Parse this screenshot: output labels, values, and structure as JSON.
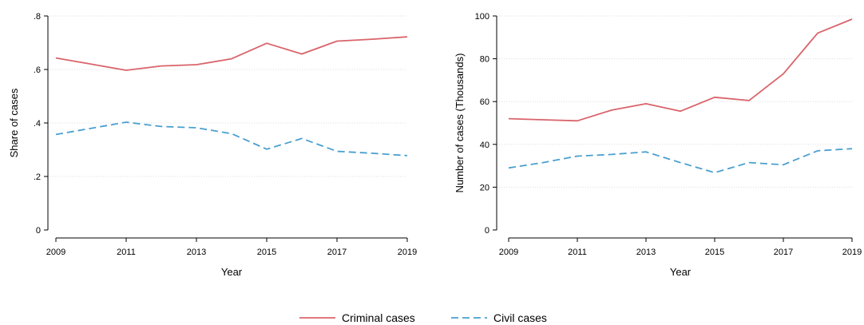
{
  "chart_data": [
    {
      "type": "line",
      "xlabel": "Year",
      "ylabel": "Share of cases",
      "xlim": [
        2009,
        2019
      ],
      "ylim": [
        0,
        0.8
      ],
      "x_ticks": [
        2009,
        2011,
        2013,
        2015,
        2017,
        2019
      ],
      "x_tick_labels": [
        "2009",
        "2011",
        "2013",
        "2015",
        "2017",
        "2019"
      ],
      "y_ticks": [
        0,
        0.2,
        0.4,
        0.6,
        0.8
      ],
      "y_tick_labels": [
        "0",
        ".2",
        ".4",
        ".6",
        ".8"
      ],
      "grid": true,
      "x": [
        2009,
        2010,
        2011,
        2012,
        2013,
        2014,
        2015,
        2016,
        2017,
        2018,
        2019
      ],
      "series": [
        {
          "name": "Criminal cases",
          "color": "#d9646b",
          "dash": "solid",
          "values": [
            0.643,
            0.62,
            0.597,
            0.613,
            0.618,
            0.64,
            0.698,
            0.658,
            0.706,
            0.713,
            0.722
          ]
        },
        {
          "name": "Civil cases",
          "color": "#4a9fd0",
          "dash": "dashed",
          "values": [
            0.357,
            0.38,
            0.403,
            0.387,
            0.382,
            0.36,
            0.302,
            0.342,
            0.294,
            0.287,
            0.278
          ]
        }
      ]
    },
    {
      "type": "line",
      "xlabel": "Year",
      "ylabel": "Number of cases (Thousands)",
      "xlim": [
        2009,
        2019
      ],
      "ylim": [
        0,
        100
      ],
      "x_ticks": [
        2009,
        2011,
        2013,
        2015,
        2017,
        2019
      ],
      "x_tick_labels": [
        "2009",
        "2011",
        "2013",
        "2015",
        "2017",
        "2019"
      ],
      "y_ticks": [
        0,
        20,
        40,
        60,
        80,
        100
      ],
      "y_tick_labels": [
        "0",
        "20",
        "40",
        "60",
        "80",
        "100"
      ],
      "grid": true,
      "x": [
        2009,
        2010,
        2011,
        2012,
        2013,
        2014,
        2015,
        2016,
        2017,
        2018,
        2019
      ],
      "series": [
        {
          "name": "Criminal cases",
          "color": "#d9646b",
          "dash": "solid",
          "values": [
            52,
            51.5,
            51,
            56,
            59,
            55.5,
            62,
            60.5,
            73,
            92,
            98.5
          ]
        },
        {
          "name": "Civil cases",
          "color": "#4a9fd0",
          "dash": "dashed",
          "values": [
            29,
            31.5,
            34.5,
            35.3,
            36.5,
            31.5,
            26.8,
            31.5,
            30.5,
            37,
            38
          ]
        }
      ]
    }
  ],
  "legend": {
    "placement": "bottom-center",
    "items": [
      {
        "label": "Criminal cases",
        "color": "#d9646b",
        "dash": "solid"
      },
      {
        "label": "Civil cases",
        "color": "#4a9fd0",
        "dash": "dashed"
      }
    ]
  }
}
